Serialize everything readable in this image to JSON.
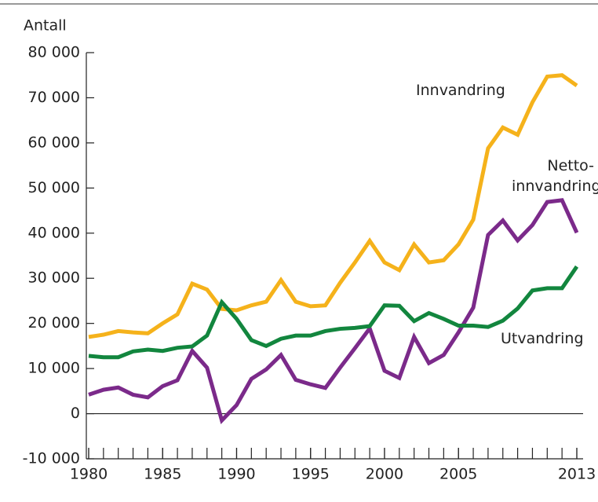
{
  "chart_data": {
    "type": "line",
    "y_axis_label": "Antall",
    "x": [
      1980,
      1981,
      1982,
      1983,
      1984,
      1985,
      1986,
      1987,
      1988,
      1989,
      1990,
      1991,
      1992,
      1993,
      1994,
      1995,
      1996,
      1997,
      1998,
      1999,
      2000,
      2001,
      2002,
      2003,
      2004,
      2005,
      2006,
      2007,
      2008,
      2009,
      2010,
      2011,
      2012,
      2013
    ],
    "series": [
      {
        "name": "Innvandring",
        "color": "#f5b21b",
        "values": [
          17000,
          17500,
          18300,
          18000,
          17800,
          20000,
          22000,
          28800,
          27500,
          23200,
          22900,
          24000,
          24800,
          29600,
          24800,
          23800,
          24000,
          29000,
          33500,
          38300,
          33500,
          31800,
          37500,
          33500,
          34000,
          37500,
          43000,
          58800,
          63400,
          61800,
          69000,
          74700,
          75000,
          72700
        ]
      },
      {
        "name": "Netto-innvandring",
        "color": "#7b2a8a",
        "values": [
          4200,
          5300,
          5800,
          4200,
          3600,
          6100,
          7400,
          13900,
          10200,
          -1500,
          1900,
          7700,
          9800,
          13000,
          7500,
          6500,
          5700,
          10200,
          14500,
          18900,
          9500,
          7900,
          17000,
          11200,
          13000,
          18000,
          23500,
          39600,
          42800,
          38400,
          41800,
          46900,
          47300,
          40100
        ]
      },
      {
        "name": "Utvandring",
        "color": "#12863e",
        "values": [
          12800,
          12500,
          12500,
          13800,
          14200,
          13900,
          14600,
          14900,
          17300,
          24700,
          21000,
          16300,
          15000,
          16600,
          17300,
          17300,
          18300,
          18800,
          19000,
          19400,
          24000,
          23900,
          20500,
          22300,
          21000,
          19500,
          19500,
          19200,
          20600,
          23300,
          27300,
          27800,
          27800,
          32600
        ]
      }
    ],
    "xlim": [
      1980,
      2013
    ],
    "xticks": [
      1980,
      1985,
      1990,
      1995,
      2000,
      2005,
      2013
    ],
    "ylim": [
      -10000,
      80000
    ],
    "yticks": [
      {
        "value": -10000,
        "label": "-10 000"
      },
      0,
      {
        "value": 10000,
        "label": "10 000"
      },
      {
        "value": 20000,
        "label": "20 000"
      },
      {
        "value": 30000,
        "label": "30 000"
      },
      {
        "value": 40000,
        "label": "40 000"
      },
      {
        "value": 50000,
        "label": "50 000"
      },
      {
        "value": 60000,
        "label": "60 000"
      },
      {
        "value": 70000,
        "label": "70 000"
      },
      {
        "value": 80000,
        "label": "80 000"
      }
    ]
  }
}
